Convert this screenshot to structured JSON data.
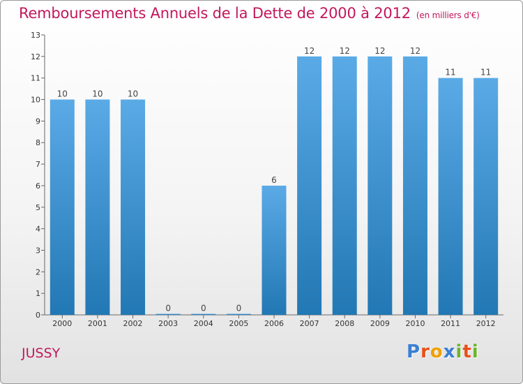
{
  "title": {
    "main": "Remboursements Annuels de la Dette de 2000 à 2012",
    "unit": "(en milliers d'€)"
  },
  "location": "JUSSY",
  "logo": {
    "text": "Proxiti",
    "letters": [
      {
        "ch": "P",
        "color": "#3a7fd5"
      },
      {
        "ch": "r",
        "color": "#e8501a"
      },
      {
        "ch": "o",
        "color": "#f0a000"
      },
      {
        "ch": "x",
        "color": "#3a7fd5"
      },
      {
        "ch": "i",
        "color": "#6bb52a"
      },
      {
        "ch": "t",
        "color": "#e8501a"
      },
      {
        "ch": "i",
        "color": "#6bb52a"
      }
    ]
  },
  "colors": {
    "title": "#c2185b",
    "bar_light": "#5aaae6",
    "bar_dark": "#2278b4"
  },
  "chart_data": {
    "type": "bar",
    "title": "Remboursements Annuels de la Dette de 2000 à 2012",
    "subtitle": "(en milliers d'€)",
    "categories": [
      "2000",
      "2001",
      "2002",
      "2003",
      "2004",
      "2005",
      "2006",
      "2007",
      "2008",
      "2009",
      "2010",
      "2011",
      "2012"
    ],
    "values": [
      10,
      10,
      10,
      0,
      0,
      0,
      6,
      12,
      12,
      12,
      12,
      11,
      11
    ],
    "ylim": [
      0,
      13
    ],
    "yticks": [
      0,
      1,
      2,
      3,
      4,
      5,
      6,
      7,
      8,
      9,
      10,
      11,
      12,
      13
    ],
    "grid": false,
    "data_labels": true
  }
}
